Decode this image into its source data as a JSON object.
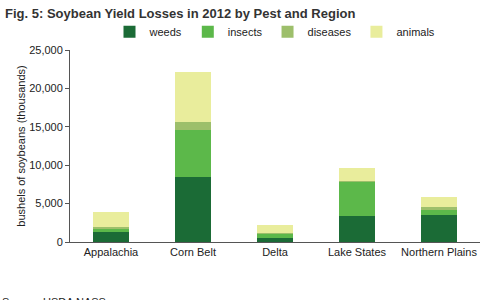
{
  "chart_data": {
    "type": "bar",
    "title": "Fig. 5: Soybean Yield Losses in 2012 by Pest and Region",
    "y_label": "bushels of soybeans (thousands)",
    "source": "Source: USDA NASS.",
    "stacked": true,
    "grid": false,
    "legend": "top",
    "categories": [
      "Appalachia",
      "Corn Belt",
      "Delta",
      "Lake States",
      "Northern Plains"
    ],
    "series": [
      {
        "name": "weeds",
        "color": "#1b6b36",
        "values": [
          1300,
          8400,
          500,
          3400,
          3500
        ]
      },
      {
        "name": "insects",
        "color": "#5cb84a",
        "values": [
          400,
          6200,
          600,
          4400,
          700
        ]
      },
      {
        "name": "diseases",
        "color": "#9dbf6b",
        "values": [
          200,
          1000,
          100,
          200,
          300
        ]
      },
      {
        "name": "animals",
        "color": "#e9ed9c",
        "values": [
          2000,
          6500,
          1000,
          1700,
          1300
        ]
      }
    ],
    "ylim": [
      0,
      25000
    ],
    "yticks": [
      0,
      {
        "value": 5000,
        "label": "5,000"
      },
      {
        "value": 10000,
        "label": "10,000"
      },
      {
        "value": 15000,
        "label": "15,000"
      },
      {
        "value": 20000,
        "label": "20,000"
      },
      {
        "value": 25000,
        "label": "25,000"
      }
    ]
  }
}
